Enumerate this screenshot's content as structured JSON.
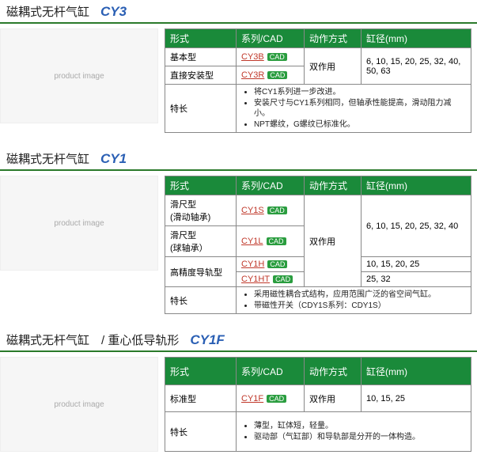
{
  "cad_label": "CAD",
  "sections": [
    {
      "title_zh": "磁耦式无杆气缸",
      "title_code": "CY3",
      "headers": [
        "形式",
        "系列/CAD",
        "动作方式",
        "缸径(mm)"
      ],
      "rows": [
        {
          "form": "基本型",
          "series": [
            "CY3B"
          ],
          "dongzuo": "",
          "bore": ""
        },
        {
          "form": "直接安装型",
          "series": [
            "CY3R"
          ],
          "dongzuo": "双作用",
          "bore": "6, 10, 15, 20, 25, 32, 40, 50, 63"
        }
      ],
      "dongzuo_rowspan": 2,
      "bore_rowspan": 2,
      "feature_label": "特长",
      "features": [
        "将CY1系列进一步改进。",
        "安装尺寸与CY1系列相同，但轴承性能提高，滑动阻力减小。",
        "NPT螺纹，G螺纹已标准化。"
      ]
    },
    {
      "title_zh": "磁耦式无杆气缸",
      "title_code": "CY1",
      "headers": [
        "形式",
        "系列/CAD",
        "动作方式",
        "缸径(mm)"
      ],
      "rows": [
        {
          "form": "滑尺型\n(滑动轴承)",
          "series": [
            "CY1S"
          ],
          "dongzuo": "",
          "bore": "6, 10, 15, 20, 25, 32, 40"
        },
        {
          "form": "滑尺型\n(球轴承）",
          "series": [
            "CY1L"
          ],
          "dongzuo": "双作用",
          "bore": ""
        },
        {
          "form": "高精度导轨型",
          "series": [
            "CY1H"
          ],
          "dongzuo": "",
          "bore": "10, 15, 20, 25"
        },
        {
          "form": "",
          "series": [
            "CY1HT"
          ],
          "dongzuo": "",
          "bore": "25, 32"
        }
      ],
      "dongzuo_rowspan": 4,
      "bore_spans": [
        2,
        0,
        1,
        1
      ],
      "form_spans": [
        1,
        1,
        2,
        0
      ],
      "feature_label": "特长",
      "features": [
        "采用磁性耦合式结构，应用范围广泛的省空间气缸。",
        "带磁性开关（CDY1S系列：CDY1S）"
      ]
    },
    {
      "title_zh": "磁耦式无杆气缸　/  重心低导轨形",
      "title_code": "CY1F",
      "headers": [
        "形式",
        "系列/CAD",
        "动作方式",
        "缸径(mm)"
      ],
      "rows": [
        {
          "form": "标准型",
          "series": [
            "CY1F"
          ],
          "dongzuo": "双作用",
          "bore": "10, 15, 25"
        }
      ],
      "feature_label": "特长",
      "features": [
        "薄型，缸体短，轻量。",
        "驱动部（气缸部）和导轨部是分开的一体构造。"
      ]
    }
  ]
}
